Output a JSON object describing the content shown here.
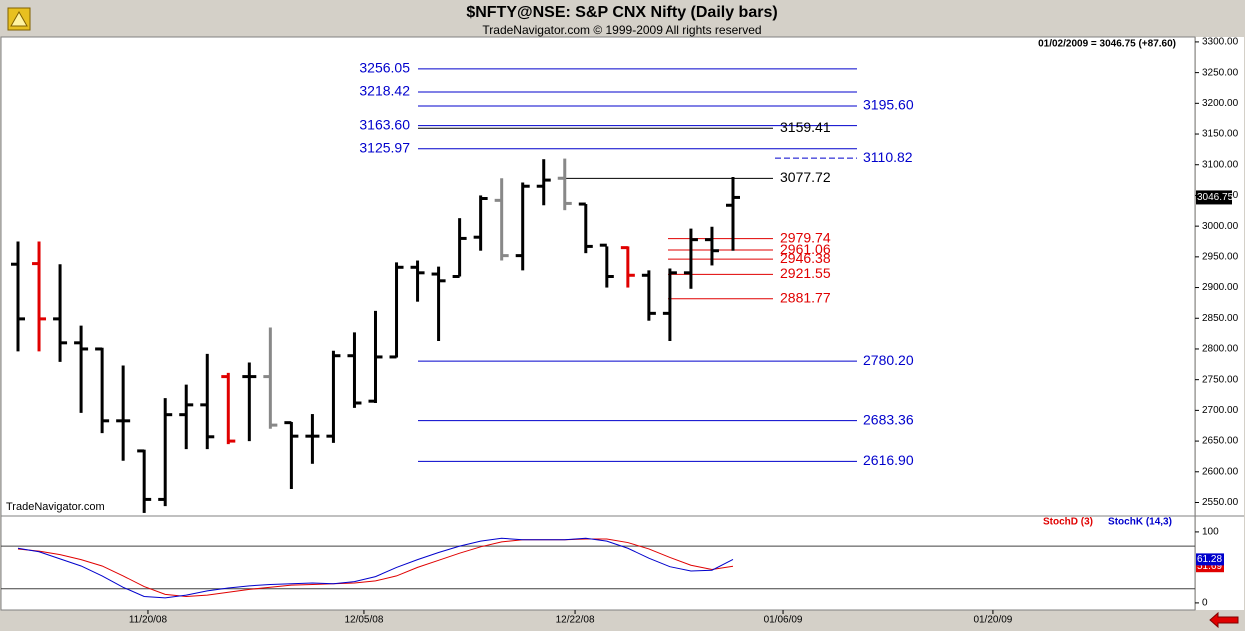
{
  "chart_data": [
    {
      "type": "ohlc",
      "title": "$NFTY@NSE:  S&P CNX Nifty  (Daily bars)",
      "subtitle": "TradeNavigator.com © 1999-2009 All rights reserved",
      "header": "01/02/2009 = 3046.75 (+87.60)",
      "watermark": "TradeNavigator.com",
      "x": [
        0,
        1,
        2,
        3,
        4,
        5,
        6,
        7,
        8,
        9,
        10,
        11,
        12,
        13,
        14,
        15,
        16,
        17,
        18,
        19,
        20,
        21,
        22,
        23,
        24,
        25,
        26,
        27,
        28,
        29,
        30,
        31,
        32,
        33,
        34
      ],
      "open": [
        2938,
        2939,
        2849,
        2810,
        2800,
        2683,
        2634,
        2555,
        2693,
        2709,
        2755,
        2755,
        2755,
        2680,
        2658,
        2658,
        2789,
        2715,
        2787,
        2933,
        2922,
        2918,
        2982,
        3042,
        2952,
        3065,
        3078,
        3036,
        2969,
        2965,
        2920,
        2858,
        2924,
        2978,
        3034
      ],
      "high": [
        2975,
        2975,
        2938,
        2838,
        2802,
        2773,
        2636,
        2720,
        2742,
        2792,
        2761,
        2778,
        2835,
        2681,
        2694,
        2797,
        2827,
        2862,
        2941,
        2944,
        2934,
        3013,
        3050,
        3078,
        3071,
        3109,
        3110,
        3036,
        2967,
        2967,
        2928,
        2931,
        2996,
        2999,
        3080
      ],
      "low": [
        2796,
        2796,
        2779,
        2696,
        2663,
        2618,
        2533,
        2544,
        2637,
        2637,
        2645,
        2650,
        2670,
        2572,
        2613,
        2647,
        2704,
        2712,
        2786,
        2877,
        2813,
        2918,
        2960,
        2944,
        2928,
        3034,
        3026,
        2956,
        2900,
        2900,
        2846,
        2813,
        2898,
        2936,
        2960
      ],
      "close": [
        2849,
        2849,
        2810,
        2800,
        2683,
        2683,
        2555,
        2693,
        2709,
        2657,
        2650,
        2755,
        2676,
        2658,
        2658,
        2789,
        2712,
        2787,
        2933,
        2924,
        2911,
        2980,
        3045,
        2952,
        3065,
        3075,
        3037,
        2967,
        2918,
        2920,
        2858,
        2924,
        2978,
        2960,
        3046.75
      ],
      "bar_colors": [
        "#000",
        "#e00000",
        "#000",
        "#000",
        "#000",
        "#000",
        "#000",
        "#000",
        "#000",
        "#000",
        "#e00000",
        "#000",
        "#888",
        "#000",
        "#000",
        "#000",
        "#000",
        "#000",
        "#000",
        "#000",
        "#000",
        "#000",
        "#000",
        "#888",
        "#000",
        "#000",
        "#888",
        "#000",
        "#000",
        "#e00000",
        "#000",
        "#000",
        "#000",
        "#000",
        "#000"
      ],
      "xlim": [
        -0.856,
        55.97
      ],
      "ylim": [
        2528,
        3308
      ],
      "yticks": [
        {
          "value": 3300,
          "label": "3300.00"
        },
        {
          "value": 3250,
          "label": "3250.00"
        },
        {
          "value": 3200,
          "label": "3200.00"
        },
        {
          "value": 3150,
          "label": "3150.00"
        },
        {
          "value": 3100,
          "label": "3100.00"
        },
        {
          "value": 3050,
          "label": "3050.00"
        },
        {
          "value": 3000,
          "label": "3000.00"
        },
        {
          "value": 2950,
          "label": "2950.00"
        },
        {
          "value": 2900,
          "label": "2900.00"
        },
        {
          "value": 2850,
          "label": "2850.00"
        },
        {
          "value": 2800,
          "label": "2800.00"
        },
        {
          "value": 2750,
          "label": "2750.00"
        },
        {
          "value": 2700,
          "label": "2700.00"
        },
        {
          "value": 2650,
          "label": "2650.00"
        },
        {
          "value": 2600,
          "label": "2600.00"
        },
        {
          "value": 2550,
          "label": "2550.00"
        }
      ],
      "levels": [
        {
          "value": 3256.05,
          "label": "3256.05",
          "color": "#0000cc"
        },
        {
          "value": 3218.42,
          "label": "3218.42",
          "color": "#0000cc"
        },
        {
          "value": 3195.6,
          "label": "3195.60",
          "color": "#0000cc"
        },
        {
          "value": 3163.6,
          "label": "3163.60",
          "color": "#0000cc"
        },
        {
          "value": 3159.41,
          "label": "3159.41",
          "color": "#000000"
        },
        {
          "value": 3125.97,
          "label": "3125.97",
          "color": "#0000cc"
        },
        {
          "value": 3110.82,
          "label": "3110.82",
          "color": "#0000cc"
        },
        {
          "value": 3077.72,
          "label": "3077.72",
          "color": "#000000"
        },
        {
          "value": 2979.74,
          "label": "2979.74",
          "color": "#e00000"
        },
        {
          "value": 2961.06,
          "label": "2961.06",
          "color": "#e00000"
        },
        {
          "value": 2946.38,
          "label": "2946.38",
          "color": "#e00000"
        },
        {
          "value": 2921.55,
          "label": "2921.55",
          "color": "#e00000"
        },
        {
          "value": 2881.77,
          "label": "2881.77",
          "color": "#e00000"
        },
        {
          "value": 2780.2,
          "label": "2780.20",
          "color": "#0000cc"
        },
        {
          "value": 2683.36,
          "label": "2683.36",
          "color": "#0000cc"
        },
        {
          "value": 2616.9,
          "label": "2616.90",
          "color": "#0000cc"
        }
      ]
    },
    {
      "type": "line",
      "x": [
        0,
        1,
        2,
        3,
        4,
        5,
        6,
        7,
        8,
        9,
        10,
        11,
        12,
        13,
        14,
        15,
        16,
        17,
        18,
        19,
        20,
        21,
        22,
        23,
        24,
        25,
        26,
        27,
        28,
        29,
        30,
        31,
        32,
        33,
        34
      ],
      "series": [
        {
          "name": "StochD (3)",
          "color": "#e00000",
          "values": [
            76,
            73,
            68,
            61,
            52,
            38,
            23,
            12,
            9,
            11,
            15,
            19,
            22,
            25,
            26,
            27,
            28,
            31,
            38,
            50,
            60,
            70,
            79,
            86,
            89,
            89,
            89,
            90,
            90,
            85,
            76,
            64,
            53,
            47,
            51.69
          ]
        },
        {
          "name": "StochK (14,3)",
          "color": "#0000cc",
          "values": [
            77,
            72,
            62,
            52,
            38,
            22,
            9,
            7,
            11,
            17,
            21,
            24,
            26,
            27,
            28,
            27,
            30,
            37,
            50,
            61,
            71,
            80,
            87,
            91,
            89,
            89,
            89,
            91,
            87,
            77,
            63,
            51,
            45,
            46,
            61.28
          ]
        }
      ],
      "xlim": [
        -0.856,
        55.97
      ],
      "ylim": [
        -10,
        121
      ],
      "yticks": [
        100,
        0
      ],
      "levels": [
        80,
        20
      ],
      "xticks": [
        {
          "value": 6.18,
          "label": "11/20/08"
        },
        {
          "value": 16.45,
          "label": "12/05/08"
        },
        {
          "value": 26.49,
          "label": "12/22/08"
        },
        {
          "value": 36.38,
          "label": "01/06/09"
        },
        {
          "value": 46.36,
          "label": "01/20/09"
        }
      ]
    }
  ]
}
